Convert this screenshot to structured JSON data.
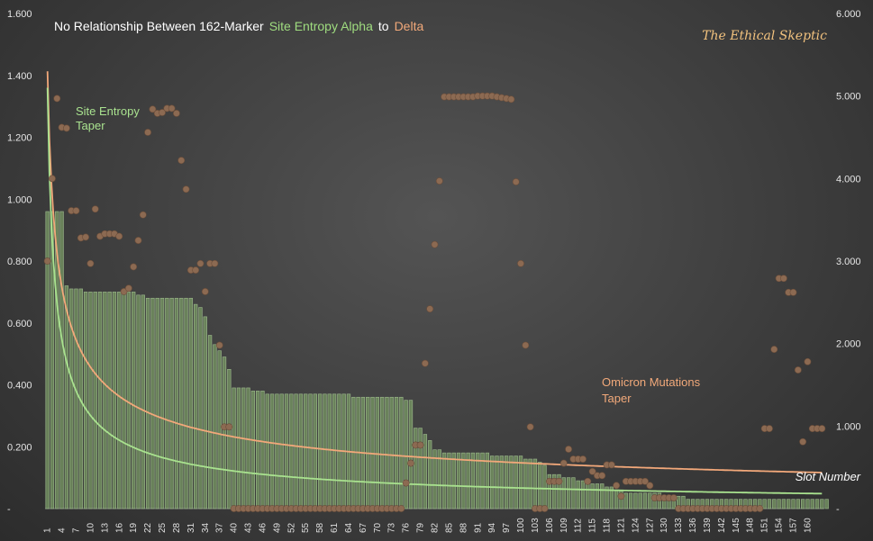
{
  "chart_data": {
    "type": "bar+scatter+line",
    "title": {
      "prefix": "No Relationship Between 162-Marker",
      "alpha_term": "Site Entropy Alpha",
      "joiner": "to",
      "delta_term": "Delta"
    },
    "brand": "The Ethical Skeptic",
    "xlabel": "Slot Number",
    "y_left": {
      "min": 0,
      "max": 1.6,
      "ticks": [
        "-",
        "0.200",
        "0.400",
        "0.600",
        "0.800",
        "1.000",
        "1.200",
        "1.400",
        "1.600"
      ]
    },
    "y_right": {
      "min": 0,
      "max": 6.0,
      "ticks": [
        "-",
        "1.000",
        "2.000",
        "3.000",
        "4.000",
        "5.000",
        "6.000"
      ]
    },
    "x_ticks": [
      "1",
      "4",
      "7",
      "10",
      "13",
      "16",
      "19",
      "22",
      "25",
      "28",
      "31",
      "34",
      "37",
      "40",
      "43",
      "46",
      "49",
      "52",
      "55",
      "58",
      "61",
      "64",
      "67",
      "70",
      "73",
      "76",
      "79",
      "82",
      "85",
      "88",
      "91",
      "94",
      "97",
      "100",
      "103",
      "106",
      "109",
      "112",
      "115",
      "118",
      "121",
      "124",
      "127",
      "130",
      "133",
      "136",
      "139",
      "142",
      "145",
      "148",
      "151",
      "154",
      "157",
      "160"
    ],
    "annotations": {
      "site_entropy_taper": [
        "Site Entropy",
        "Taper"
      ],
      "omicron_taper": [
        "Omicron Mutations",
        "Taper"
      ]
    },
    "colors": {
      "bar_fill": "#6f8a5e",
      "bar_stroke": "#a8c896",
      "alpha_line": "#a9e28f",
      "delta_line": "#f2a87a",
      "dots": "#8c6a52",
      "alpha_label": "#9fdc7f",
      "delta_label": "#f2a97a",
      "brand": "#f2c27e",
      "omicron_label": "#f2a97a"
    },
    "series": [
      {
        "name": "Site Entropy Alpha (bars, left axis)",
        "x_start": 1,
        "values": [
          0.96,
          0.96,
          0.96,
          0.96,
          0.72,
          0.71,
          0.71,
          0.71,
          0.7,
          0.7,
          0.7,
          0.7,
          0.7,
          0.7,
          0.7,
          0.7,
          0.7,
          0.7,
          0.7,
          0.69,
          0.69,
          0.68,
          0.68,
          0.68,
          0.68,
          0.68,
          0.68,
          0.68,
          0.68,
          0.68,
          0.68,
          0.66,
          0.65,
          0.62,
          0.56,
          0.53,
          0.51,
          0.49,
          0.45,
          0.39,
          0.39,
          0.39,
          0.39,
          0.38,
          0.38,
          0.38,
          0.37,
          0.37,
          0.37,
          0.37,
          0.37,
          0.37,
          0.37,
          0.37,
          0.37,
          0.37,
          0.37,
          0.37,
          0.37,
          0.37,
          0.37,
          0.37,
          0.37,
          0.37,
          0.36,
          0.36,
          0.36,
          0.36,
          0.36,
          0.36,
          0.36,
          0.36,
          0.36,
          0.36,
          0.36,
          0.35,
          0.35,
          0.26,
          0.26,
          0.24,
          0.22,
          0.19,
          0.19,
          0.18,
          0.18,
          0.18,
          0.18,
          0.18,
          0.18,
          0.18,
          0.18,
          0.18,
          0.18,
          0.17,
          0.17,
          0.17,
          0.17,
          0.17,
          0.17,
          0.17,
          0.16,
          0.16,
          0.16,
          0.15,
          0.14,
          0.11,
          0.11,
          0.11,
          0.1,
          0.1,
          0.1,
          0.09,
          0.09,
          0.09,
          0.08,
          0.08,
          0.08,
          0.07,
          0.07,
          0.06,
          0.06,
          0.05,
          0.05,
          0.05,
          0.05,
          0.05,
          0.05,
          0.05,
          0.05,
          0.04,
          0.04,
          0.04,
          0.04,
          0.04,
          0.03,
          0.03,
          0.03,
          0.03,
          0.03,
          0.03,
          0.03,
          0.03,
          0.03,
          0.03,
          0.03,
          0.03,
          0.03,
          0.03,
          0.03,
          0.03,
          0.03,
          0.03,
          0.03,
          0.03,
          0.03,
          0.03,
          0.03,
          0.03,
          0.03,
          0.03,
          0.03,
          0.03,
          0.03,
          0.03
        ]
      },
      {
        "name": "Delta mutations (dots, right axis)",
        "points": [
          [
            1,
            3.0
          ],
          [
            2,
            4.0
          ],
          [
            3,
            4.97
          ],
          [
            4,
            4.62
          ],
          [
            5,
            4.61
          ],
          [
            6,
            3.61
          ],
          [
            7,
            3.61
          ],
          [
            8,
            3.28
          ],
          [
            9,
            3.29
          ],
          [
            10,
            2.97
          ],
          [
            11,
            3.63
          ],
          [
            12,
            3.3
          ],
          [
            13,
            3.33
          ],
          [
            14,
            3.33
          ],
          [
            15,
            3.33
          ],
          [
            16,
            3.3
          ],
          [
            17,
            2.63
          ],
          [
            18,
            2.67
          ],
          [
            19,
            2.93
          ],
          [
            20,
            3.25
          ],
          [
            21,
            3.56
          ],
          [
            22,
            4.56
          ],
          [
            23,
            4.84
          ],
          [
            24,
            4.79
          ],
          [
            25,
            4.8
          ],
          [
            26,
            4.85
          ],
          [
            27,
            4.85
          ],
          [
            28,
            4.79
          ],
          [
            29,
            4.22
          ],
          [
            30,
            3.87
          ],
          [
            31,
            2.89
          ],
          [
            32,
            2.89
          ],
          [
            33,
            2.97
          ],
          [
            34,
            2.63
          ],
          [
            35,
            2.97
          ],
          [
            36,
            2.97
          ],
          [
            37,
            1.98
          ],
          [
            38,
            0.99
          ],
          [
            39,
            0.99
          ],
          [
            40,
            0
          ],
          [
            41,
            0
          ],
          [
            42,
            0
          ],
          [
            43,
            0
          ],
          [
            44,
            0
          ],
          [
            45,
            0
          ],
          [
            46,
            0
          ],
          [
            47,
            0
          ],
          [
            48,
            0
          ],
          [
            49,
            0
          ],
          [
            50,
            0
          ],
          [
            51,
            0
          ],
          [
            52,
            0
          ],
          [
            53,
            0
          ],
          [
            54,
            0
          ],
          [
            55,
            0
          ],
          [
            56,
            0
          ],
          [
            57,
            0
          ],
          [
            58,
            0
          ],
          [
            59,
            0
          ],
          [
            60,
            0
          ],
          [
            61,
            0
          ],
          [
            62,
            0
          ],
          [
            63,
            0
          ],
          [
            64,
            0
          ],
          [
            65,
            0
          ],
          [
            66,
            0
          ],
          [
            67,
            0
          ],
          [
            68,
            0
          ],
          [
            69,
            0
          ],
          [
            70,
            0
          ],
          [
            71,
            0
          ],
          [
            72,
            0
          ],
          [
            73,
            0
          ],
          [
            74,
            0
          ],
          [
            75,
            0
          ],
          [
            76,
            0.31
          ],
          [
            77,
            0.55
          ],
          [
            78,
            0.77
          ],
          [
            79,
            0.77
          ],
          [
            80,
            1.76
          ],
          [
            81,
            2.42
          ],
          [
            82,
            3.2
          ],
          [
            83,
            3.97
          ],
          [
            84,
            4.99
          ],
          [
            85,
            4.99
          ],
          [
            86,
            4.99
          ],
          [
            87,
            4.99
          ],
          [
            88,
            4.99
          ],
          [
            89,
            4.99
          ],
          [
            90,
            4.99
          ],
          [
            91,
            5.0
          ],
          [
            92,
            5.0
          ],
          [
            93,
            5.0
          ],
          [
            94,
            5.0
          ],
          [
            95,
            4.99
          ],
          [
            96,
            4.98
          ],
          [
            97,
            4.97
          ],
          [
            98,
            4.96
          ],
          [
            99,
            3.96
          ],
          [
            100,
            2.97
          ],
          [
            101,
            1.98
          ],
          [
            102,
            0.99
          ],
          [
            103,
            0
          ],
          [
            104,
            0
          ],
          [
            105,
            0
          ],
          [
            106,
            0.33
          ],
          [
            107,
            0.33
          ],
          [
            108,
            0.33
          ],
          [
            109,
            0.55
          ],
          [
            110,
            0.72
          ],
          [
            111,
            0.6
          ],
          [
            112,
            0.6
          ],
          [
            113,
            0.6
          ],
          [
            114,
            0.33
          ],
          [
            115,
            0.45
          ],
          [
            116,
            0.4
          ],
          [
            117,
            0.4
          ],
          [
            118,
            0.53
          ],
          [
            119,
            0.53
          ],
          [
            120,
            0.28
          ],
          [
            121,
            0.15
          ],
          [
            122,
            0.33
          ],
          [
            123,
            0.33
          ],
          [
            124,
            0.33
          ],
          [
            125,
            0.33
          ],
          [
            126,
            0.33
          ],
          [
            127,
            0.28
          ],
          [
            128,
            0.13
          ],
          [
            129,
            0.13
          ],
          [
            130,
            0.13
          ],
          [
            131,
            0.13
          ],
          [
            132,
            0.13
          ],
          [
            133,
            0
          ],
          [
            134,
            0
          ],
          [
            135,
            0
          ],
          [
            136,
            0
          ],
          [
            137,
            0
          ],
          [
            138,
            0
          ],
          [
            139,
            0
          ],
          [
            140,
            0
          ],
          [
            141,
            0
          ],
          [
            142,
            0
          ],
          [
            143,
            0
          ],
          [
            144,
            0
          ],
          [
            145,
            0
          ],
          [
            146,
            0
          ],
          [
            147,
            0
          ],
          [
            148,
            0
          ],
          [
            149,
            0
          ],
          [
            150,
            0
          ],
          [
            151,
            0.97
          ],
          [
            152,
            0.97
          ],
          [
            153,
            1.93
          ],
          [
            154,
            2.79
          ],
          [
            155,
            2.79
          ],
          [
            156,
            2.62
          ],
          [
            157,
            2.62
          ],
          [
            158,
            1.68
          ],
          [
            159,
            0.81
          ],
          [
            160,
            1.78
          ],
          [
            161,
            0.97
          ],
          [
            162,
            0.97
          ],
          [
            163,
            0.97
          ]
        ]
      },
      {
        "name": "Site Entropy Taper (left axis)",
        "formula": "1.36 * x^-0.655"
      },
      {
        "name": "Omicron Mutations Taper (right axis)",
        "formula": "5.3 * x^-0.49"
      }
    ]
  }
}
